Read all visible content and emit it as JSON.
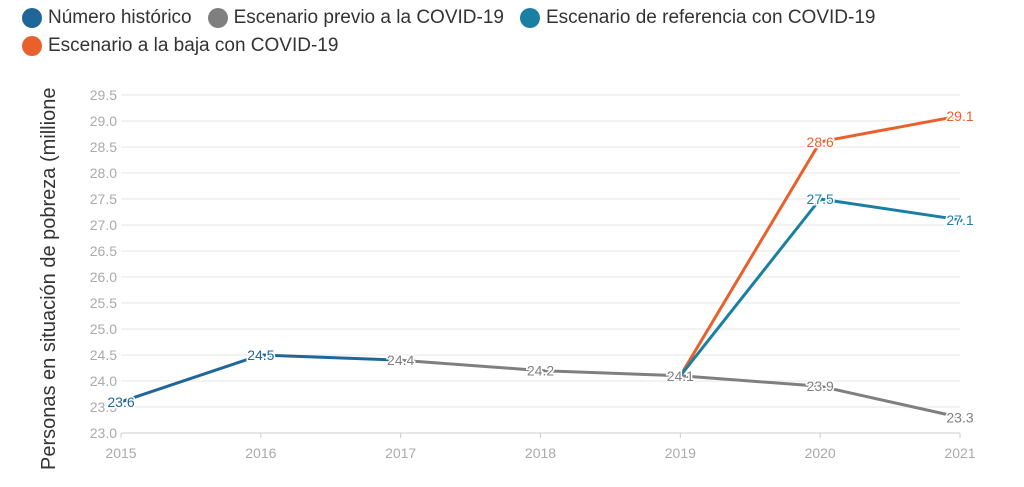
{
  "chart_data": {
    "type": "line",
    "title": "",
    "xlabel": "",
    "ylabel": "Personas en situación de pobreza (millione",
    "ylim": [
      23.0,
      29.5
    ],
    "yticks": [
      "23.0",
      "23.5",
      "24.0",
      "24.5",
      "25.0",
      "25.5",
      "26.0",
      "26.5",
      "27.0",
      "27.5",
      "28.0",
      "28.5",
      "29.0",
      "29.5"
    ],
    "x": [
      "2015",
      "2016",
      "2017",
      "2018",
      "2019",
      "2020",
      "2021"
    ],
    "grid": true,
    "legend_position": "top",
    "series": [
      {
        "name": "Escenario a la baja con COVID-19",
        "color": "#e8612c",
        "points": [
          {
            "x": "2019",
            "y": 24.1
          },
          {
            "x": "2020",
            "y": 28.6,
            "label": "28.6"
          },
          {
            "x": "2021",
            "y": 29.1,
            "label": "29.1"
          }
        ]
      },
      {
        "name": "Escenario de referencia con COVID-19",
        "color": "#1a7fa3",
        "points": [
          {
            "x": "2019",
            "y": 24.1
          },
          {
            "x": "2020",
            "y": 27.5,
            "label": "27.5"
          },
          {
            "x": "2021",
            "y": 27.1,
            "label": "27.1"
          }
        ]
      },
      {
        "name": "Escenario previo a la COVID-19",
        "color": "#7f7f7f",
        "points": [
          {
            "x": "2017",
            "y": 24.4,
            "label": "24.4"
          },
          {
            "x": "2018",
            "y": 24.2,
            "label": "24.2"
          },
          {
            "x": "2019",
            "y": 24.1,
            "label": "24.1"
          },
          {
            "x": "2020",
            "y": 23.9,
            "label": "23.9"
          },
          {
            "x": "2021",
            "y": 23.3,
            "label": "23.3"
          }
        ]
      },
      {
        "name": "Número histórico",
        "color": "#1f6699",
        "points": [
          {
            "x": "2015",
            "y": 23.6,
            "label": "23.6"
          },
          {
            "x": "2016",
            "y": 24.5,
            "label": "24.5"
          },
          {
            "x": "2017",
            "y": 24.4
          }
        ]
      }
    ]
  },
  "legend": [
    {
      "label": "Número histórico",
      "color": "#1f6699"
    },
    {
      "label": "Escenario previo a la COVID-19",
      "color": "#7f7f7f"
    },
    {
      "label": "Escenario de referencia con COVID-19",
      "color": "#1a7fa3"
    },
    {
      "label": "Escenario a la baja con COVID-19",
      "color": "#e8612c"
    }
  ]
}
